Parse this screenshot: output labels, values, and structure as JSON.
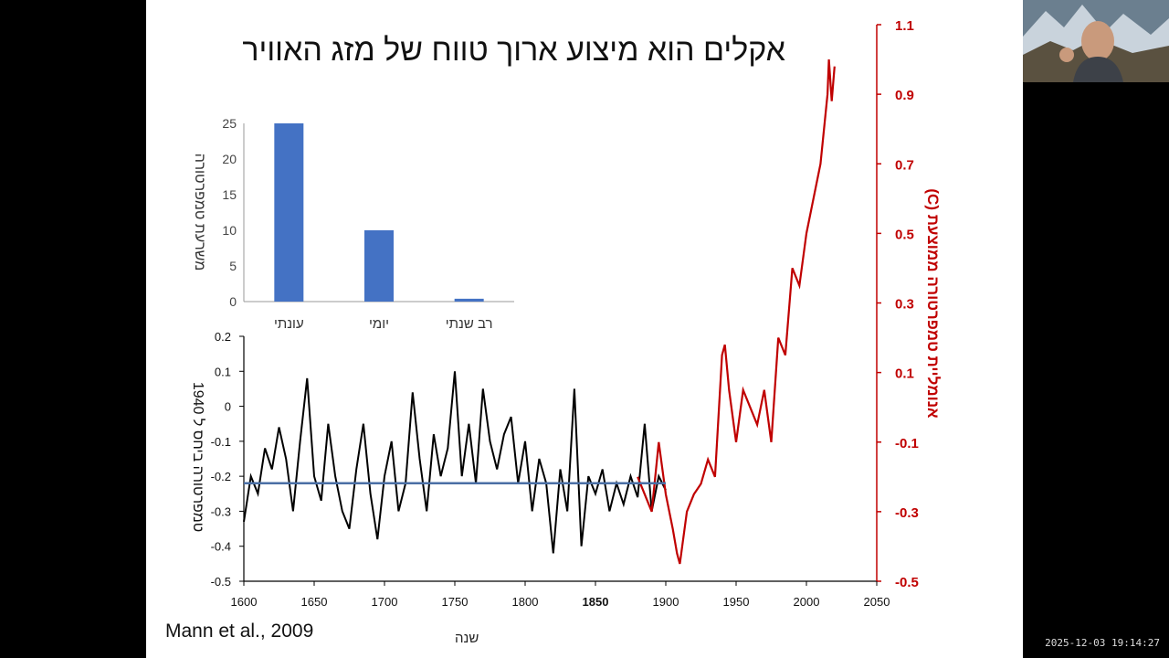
{
  "slide": {
    "title": "אקלים הוא מיצוע ארוך טווח של מזג האוויר",
    "citation": "Mann et al., 2009",
    "xlabel": "שנה"
  },
  "colors": {
    "bar": "#4472c4",
    "series_black": "#000000",
    "series_red": "#c00000",
    "mean_line": "#4a6fa5"
  },
  "timestamp": "2025-12-03 19:14:27",
  "webcam": {
    "icon": "presenter-video-icon"
  },
  "chart_data": [
    {
      "type": "bar",
      "categories": [
        "עונתי",
        "יומי",
        "רב שנתי"
      ],
      "values": [
        25,
        10,
        0.4
      ],
      "ylabel": "משרעת טמפרטורה",
      "ylim": [
        0,
        25
      ],
      "yticks": [
        0,
        5,
        10,
        15,
        20,
        25
      ],
      "grid": false
    },
    {
      "type": "line",
      "xlabel": "שנה",
      "ylabel_left": "טמפרטורה ביחס ל 1940",
      "ylabel_right": "אנומליית טמפרטורה ממוצעת (C)",
      "xlim": [
        1600,
        2050
      ],
      "xticks": [
        "1600",
        "1650",
        "1700",
        "1750",
        "1800",
        "1850",
        "1900",
        "1950",
        "2000",
        "2050"
      ],
      "ylim_left": [
        -0.5,
        0.2
      ],
      "yticks_left": [
        "0.2",
        "0.1",
        "0",
        "-0.1",
        "-0.2",
        "-0.3",
        "-0.4",
        "-0.5"
      ],
      "ylim_right": [
        -0.5,
        1.1
      ],
      "yticks_right": [
        "1.1",
        "0.9",
        "0.7",
        "0.5",
        "0.3",
        "0.1",
        "-0.1",
        "-0.3",
        "-0.5"
      ],
      "grid": false,
      "series": [
        {
          "axis": "left",
          "x": [
            1600,
            1605,
            1610,
            1615,
            1620,
            1625,
            1630,
            1635,
            1640,
            1645,
            1650,
            1655,
            1660,
            1665,
            1670,
            1675,
            1680,
            1685,
            1690,
            1695,
            1700,
            1705,
            1710,
            1715,
            1720,
            1725,
            1730,
            1735,
            1740,
            1745,
            1750,
            1755,
            1760,
            1765,
            1770,
            1775,
            1780,
            1785,
            1790,
            1795,
            1800,
            1805,
            1810,
            1815,
            1820,
            1825,
            1830,
            1835,
            1840,
            1845,
            1850,
            1855,
            1860,
            1865,
            1870,
            1875,
            1880,
            1885,
            1890,
            1895,
            1900
          ],
          "y": [
            -0.33,
            -0.2,
            -0.25,
            -0.12,
            -0.18,
            -0.06,
            -0.15,
            -0.3,
            -0.1,
            0.08,
            -0.2,
            -0.27,
            -0.05,
            -0.2,
            -0.3,
            -0.35,
            -0.18,
            -0.05,
            -0.25,
            -0.38,
            -0.2,
            -0.1,
            -0.3,
            -0.22,
            0.04,
            -0.15,
            -0.3,
            -0.08,
            -0.2,
            -0.12,
            0.1,
            -0.2,
            -0.05,
            -0.22,
            0.05,
            -0.1,
            -0.18,
            -0.08,
            -0.03,
            -0.22,
            -0.1,
            -0.3,
            -0.15,
            -0.22,
            -0.42,
            -0.18,
            -0.3,
            0.05,
            -0.4,
            -0.2,
            -0.25,
            -0.18,
            -0.3,
            -0.22,
            -0.28,
            -0.2,
            -0.26,
            -0.05,
            -0.3,
            -0.2,
            -0.24
          ]
        },
        {
          "axis": "right",
          "x": [
            1880,
            1885,
            1890,
            1895,
            1900,
            1905,
            1908,
            1910,
            1915,
            1920,
            1925,
            1930,
            1935,
            1940,
            1942,
            1945,
            1950,
            1955,
            1960,
            1965,
            1970,
            1975,
            1980,
            1985,
            1990,
            1995,
            2000,
            2005,
            2010,
            2015,
            2016,
            2018,
            2020
          ],
          "y": [
            -0.2,
            -0.25,
            -0.3,
            -0.1,
            -0.25,
            -0.35,
            -0.42,
            -0.45,
            -0.3,
            -0.25,
            -0.22,
            -0.15,
            -0.2,
            0.15,
            0.18,
            0.05,
            -0.1,
            0.05,
            0.0,
            -0.05,
            0.05,
            -0.1,
            0.2,
            0.15,
            0.4,
            0.35,
            0.5,
            0.6,
            0.7,
            0.9,
            1.0,
            0.88,
            0.98
          ]
        }
      ],
      "hline": {
        "axis": "left",
        "y": -0.22,
        "x_from": 1600,
        "x_to": 1900
      }
    }
  ]
}
